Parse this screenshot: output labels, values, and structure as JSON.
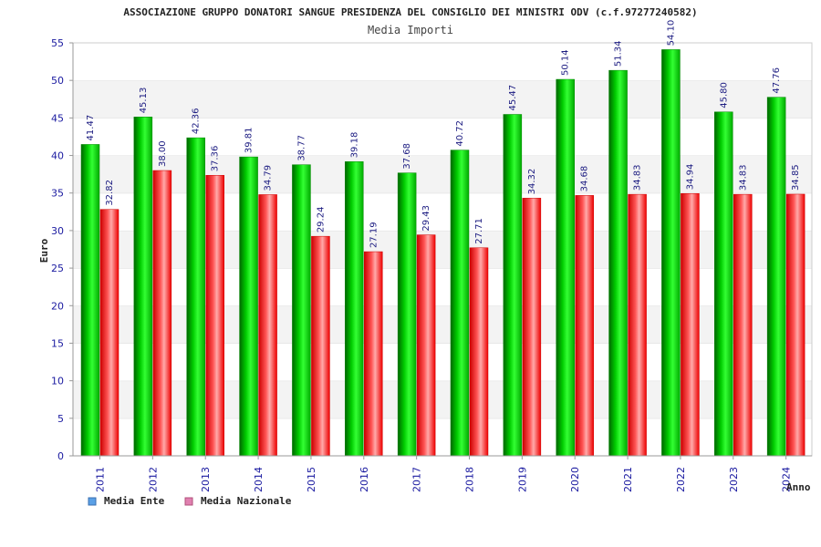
{
  "chart_data": {
    "type": "bar",
    "title": "ASSOCIAZIONE GRUPPO DONATORI SANGUE PRESIDENZA DEL CONSIGLIO DEI MINISTRI ODV (c.f.97277240582)",
    "subtitle": "Media Importi",
    "xlabel": "Anno",
    "ylabel": "Euro",
    "ylim": [
      0,
      55
    ],
    "yticks": [
      0,
      5,
      10,
      15,
      20,
      25,
      30,
      35,
      40,
      45,
      50,
      55
    ],
    "grid": "horizontal-bands",
    "legend_position": "bottom-left",
    "categories": [
      "2011",
      "2012",
      "2013",
      "2014",
      "2015",
      "2016",
      "2017",
      "2018",
      "2019",
      "2020",
      "2021",
      "2022",
      "2023",
      "2024"
    ],
    "series": [
      {
        "name": "Media Ente",
        "legend_color": "#5aa0e6",
        "bar_color": "#00bb00",
        "values": [
          41.47,
          45.13,
          42.36,
          39.81,
          38.77,
          39.18,
          37.68,
          40.72,
          45.47,
          50.14,
          51.34,
          54.1,
          45.8,
          47.76
        ],
        "labels": [
          "41.47",
          "45.13",
          "42.36",
          "39.81",
          "38.77",
          "39.18",
          "37.68",
          "40.72",
          "45.47",
          "50.14",
          "51.34",
          "54.10",
          "45.80",
          "47.76"
        ]
      },
      {
        "name": "Media Nazionale",
        "legend_color": "#e080b0",
        "bar_color": "#ee1111",
        "values": [
          32.82,
          38.0,
          37.36,
          34.79,
          29.24,
          27.19,
          29.43,
          27.71,
          34.32,
          34.68,
          34.83,
          34.94,
          34.83,
          34.85
        ],
        "labels": [
          "32.82",
          "38.00",
          "37.36",
          "34.79",
          "29.24",
          "27.19",
          "29.43",
          "27.71",
          "34.32",
          "34.68",
          "34.83",
          "34.94",
          "34.83",
          "34.85"
        ]
      }
    ]
  }
}
